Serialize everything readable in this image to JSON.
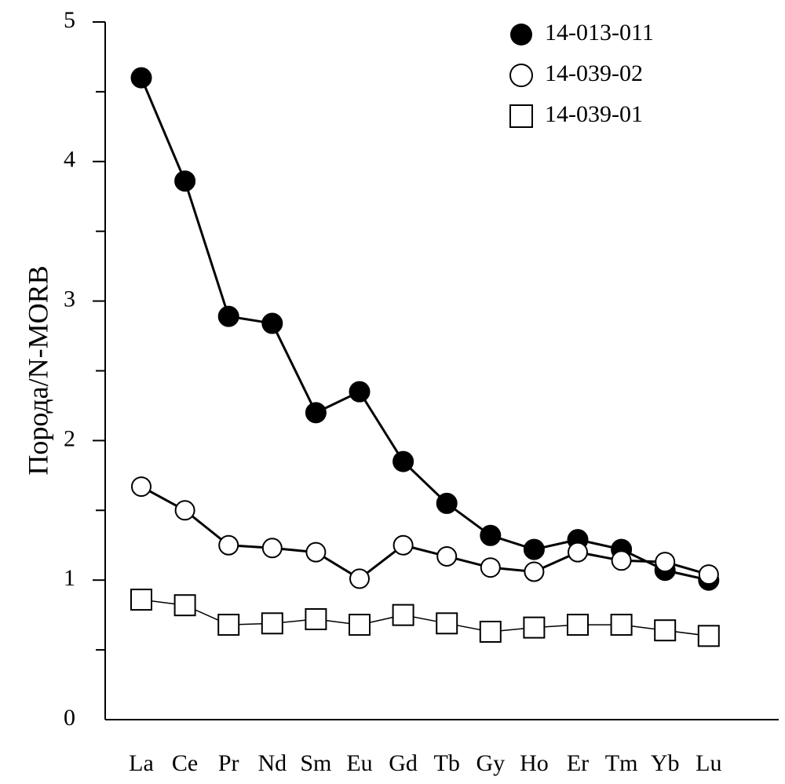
{
  "chart_data": {
    "type": "line",
    "title": "",
    "xlabel": "",
    "ylabel": "Порода/N-MORB",
    "ylim": [
      0,
      5
    ],
    "yticks": [
      "0",
      "1",
      "2",
      "3",
      "4",
      "5"
    ],
    "grid": false,
    "legend_position": "top-right",
    "categories": [
      "La",
      "Ce",
      "Pr",
      "Nd",
      "Sm",
      "Eu",
      "Gd",
      "Tb",
      "Gy",
      "Ho",
      "Er",
      "Tm",
      "Yb",
      "Lu"
    ],
    "series": [
      {
        "name": "14-013-011",
        "marker": "filled-circle",
        "values": [
          4.6,
          3.86,
          2.89,
          2.84,
          2.2,
          2.35,
          1.85,
          1.55,
          1.32,
          1.22,
          1.29,
          1.22,
          1.07,
          1.0
        ]
      },
      {
        "name": "14-039-02",
        "marker": "open-circle",
        "values": [
          1.67,
          1.5,
          1.25,
          1.23,
          1.2,
          1.01,
          1.25,
          1.17,
          1.09,
          1.06,
          1.2,
          1.14,
          1.13,
          1.04
        ]
      },
      {
        "name": "14-039-01",
        "marker": "open-square",
        "values": [
          0.86,
          0.82,
          0.68,
          0.69,
          0.72,
          0.68,
          0.75,
          0.69,
          0.63,
          0.66,
          0.68,
          0.68,
          0.64,
          0.6
        ]
      }
    ]
  }
}
